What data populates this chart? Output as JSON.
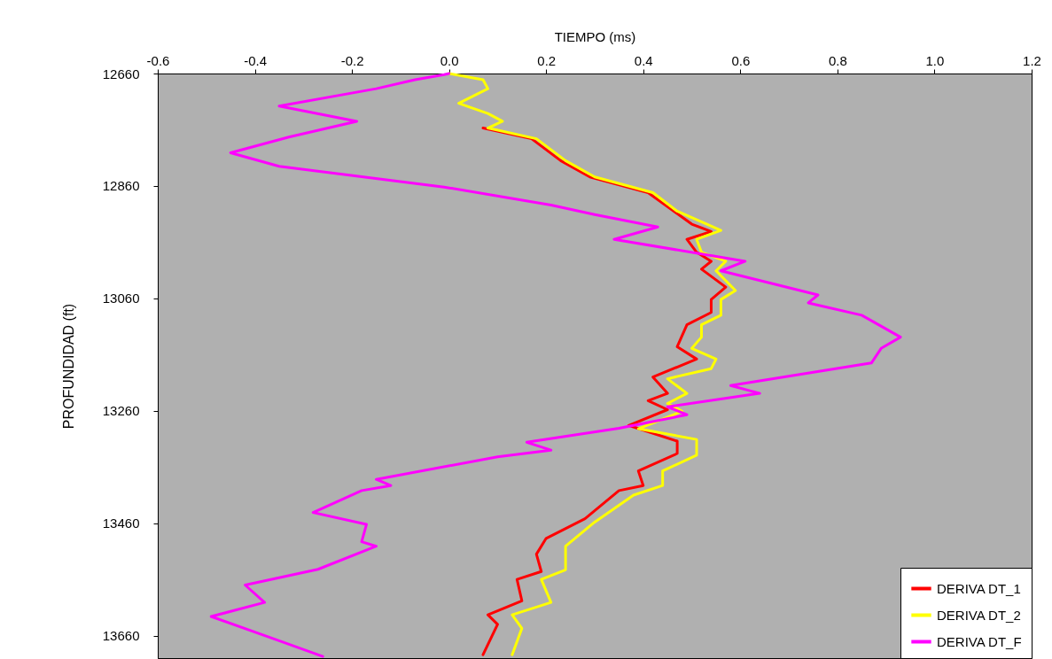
{
  "chart_data": {
    "type": "line",
    "xlabel": "TIEMPO (ms)",
    "ylabel": "PROFUNDIDAD (ft)",
    "xlim": [
      -0.6,
      1.2
    ],
    "xticks": [
      -0.6,
      -0.4,
      -0.2,
      {
        "value": 0,
        "label": "0.0"
      },
      0.2,
      0.4,
      0.6,
      0.8,
      {
        "value": 1,
        "label": "1.0"
      },
      1.2
    ],
    "ylim": [
      13700,
      12660
    ],
    "yticks": [
      12660,
      12860,
      13060,
      13260,
      13460,
      13660
    ],
    "grid": false,
    "legend": "bottom right",
    "marker": "none",
    "line_style": "solid",
    "series": [
      {
        "name": "DERIVA DT_1",
        "color": "#ff0000",
        "x": [
          null,
          null,
          null,
          null,
          null,
          null,
          0.07,
          0.17,
          0.23,
          0.29,
          0.41,
          0.5,
          0.54,
          0.49,
          0.51,
          0.54,
          0.52,
          0.57,
          0.54,
          0.54,
          0.49,
          0.47,
          0.51,
          0.42,
          0.45,
          0.41,
          0.45,
          0.37,
          0.47,
          0.47,
          0.39,
          0.4,
          0.35,
          0.28,
          0.2,
          0.18,
          0.19,
          0.14,
          0.15,
          0.08,
          0.1,
          0.07
        ],
        "values": [
          null,
          null,
          null,
          null,
          null,
          null,
          12757,
          12776,
          12815,
          12844,
          12872,
          12928,
          12941,
          12955,
          12978,
          12994,
          13008,
          13040,
          13062,
          13085,
          13107,
          13146,
          13168,
          13200,
          13229,
          13242,
          13258,
          13286,
          13314,
          13336,
          13367,
          13393,
          13402,
          13452,
          13487,
          13515,
          13546,
          13560,
          13598,
          13623,
          13640,
          13694
        ]
      },
      {
        "name": "DERIVA DT_2",
        "color": "#ffff00",
        "x": [
          0,
          0.07,
          0.08,
          0.02,
          0.08,
          0.11,
          0.08,
          0.18,
          0.24,
          0.3,
          0.42,
          0.47,
          0.56,
          0.51,
          0.52,
          0.57,
          0.55,
          0.59,
          0.56,
          0.56,
          0.52,
          0.52,
          0.5,
          0.55,
          0.54,
          0.45,
          0.49,
          0.45,
          0.48,
          0.39,
          0.51,
          0.51,
          0.51,
          0.44,
          0.44,
          0.38,
          0.3,
          0.24,
          0.24,
          0.19,
          0.21,
          0.13,
          0.15,
          0.13
        ],
        "values": [
          12660,
          12671,
          12687,
          12713,
          12731,
          12745,
          12757,
          12776,
          12815,
          12844,
          12872,
          12905,
          12939,
          12955,
          12978,
          12994,
          13011,
          13046,
          13062,
          13090,
          13107,
          13129,
          13149,
          13168,
          13185,
          13203,
          13229,
          13247,
          13261,
          13292,
          13311,
          13314,
          13339,
          13367,
          13393,
          13410,
          13458,
          13501,
          13543,
          13560,
          13601,
          13623,
          13647,
          13694
        ]
      },
      {
        "name": "DERIVA DT_F",
        "color": "#ff00ff",
        "x": [
          0,
          -0.01,
          -0.07,
          -0.15,
          -0.35,
          -0.19,
          -0.33,
          -0.45,
          -0.35,
          -0.01,
          0.21,
          0.3,
          0.43,
          0.34,
          0.61,
          0.56,
          0.76,
          0.74,
          0.85,
          0.93,
          0.89,
          0.87,
          0.58,
          0.64,
          0.45,
          0.49,
          0.35,
          0.16,
          0.21,
          0.1,
          -0.15,
          -0.12,
          -0.18,
          -0.28,
          -0.17,
          -0.18,
          -0.15,
          -0.27,
          -0.42,
          -0.38,
          -0.49,
          -0.35,
          -0.26
        ],
        "values": [
          12660,
          12662,
          12671,
          12687,
          12718,
          12745,
          12773,
          12801,
          12825,
          12862,
          12894,
          12911,
          12933,
          12955,
          12994,
          13011,
          13054,
          13068,
          13090,
          13129,
          13149,
          13175,
          13215,
          13229,
          13253,
          13267,
          13291,
          13316,
          13330,
          13342,
          13382,
          13393,
          13402,
          13441,
          13462,
          13493,
          13501,
          13542,
          13570,
          13601,
          13626,
          13669,
          13697
        ]
      }
    ]
  }
}
